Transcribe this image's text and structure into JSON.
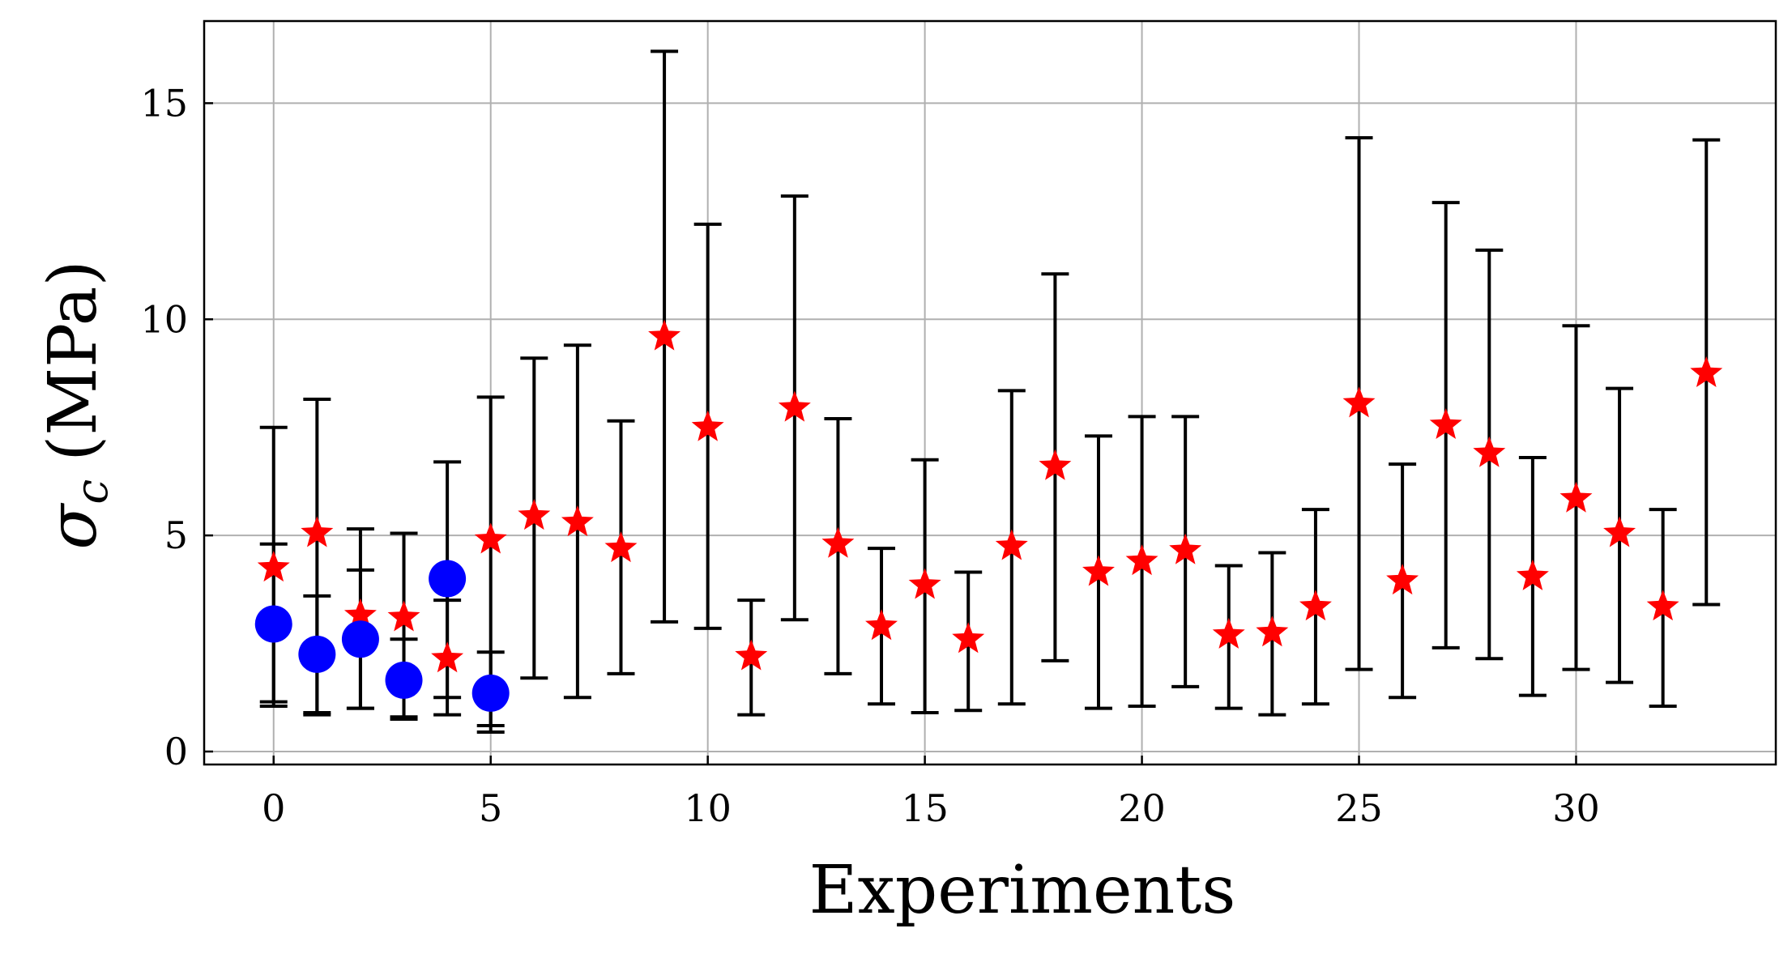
{
  "chart_data": {
    "type": "scatter",
    "xlabel": "Experiments",
    "ylabel": "σ",
    "ylabel_subscript": "c",
    "ylabel_unit": "(MPa)",
    "xlim": [
      -1.6,
      34.6
    ],
    "ylim": [
      -0.3,
      16.9
    ],
    "xticks": [
      0,
      5,
      10,
      15,
      20,
      25,
      30
    ],
    "yticks": [
      0,
      5,
      10,
      15
    ],
    "grid": true,
    "colors": {
      "stars": "#ff0000",
      "circles": "#0000ff",
      "errorbars": "#000000",
      "grid": "#b0b0b0"
    },
    "series": [
      {
        "marker": "star",
        "x": [
          0,
          1,
          2,
          3,
          4,
          5,
          6,
          7,
          8,
          9,
          10,
          11,
          12,
          13,
          14,
          15,
          16,
          17,
          18,
          19,
          20,
          21,
          22,
          23,
          24,
          25,
          26,
          27,
          28,
          29,
          30,
          31,
          32,
          33
        ],
        "y": [
          4.25,
          5.05,
          3.15,
          3.1,
          2.15,
          4.9,
          5.45,
          5.3,
          4.7,
          9.6,
          7.5,
          2.2,
          7.95,
          4.8,
          2.9,
          3.85,
          2.6,
          4.75,
          6.6,
          4.15,
          4.4,
          4.65,
          2.7,
          2.75,
          3.35,
          8.05,
          3.95,
          7.55,
          6.9,
          4.05,
          5.85,
          5.05,
          3.35,
          8.75
        ],
        "err_low": [
          1.15,
          0.9,
          1.0,
          0.75,
          0.85,
          0.45,
          1.7,
          1.25,
          1.8,
          3.0,
          2.85,
          0.85,
          3.05,
          1.8,
          1.1,
          0.9,
          0.95,
          1.1,
          2.1,
          1.0,
          1.05,
          1.5,
          1.0,
          0.85,
          1.1,
          1.9,
          1.25,
          2.4,
          2.15,
          1.3,
          1.9,
          1.6,
          1.05,
          3.4
        ],
        "err_high": [
          7.5,
          8.15,
          5.15,
          5.05,
          6.7,
          8.2,
          9.1,
          9.4,
          7.65,
          16.2,
          12.2,
          3.5,
          12.85,
          7.7,
          4.7,
          6.75,
          4.15,
          8.35,
          11.05,
          7.3,
          7.75,
          7.75,
          4.3,
          4.6,
          5.6,
          14.2,
          6.65,
          12.7,
          11.6,
          6.8,
          9.85,
          8.4,
          5.6,
          14.15
        ]
      },
      {
        "marker": "circle",
        "x": [
          0,
          1,
          2,
          3,
          4,
          5
        ],
        "y": [
          2.95,
          2.25,
          2.6,
          1.65,
          4.0,
          1.35
        ],
        "err_low": [
          1.05,
          0.85,
          1.0,
          0.8,
          1.25,
          0.6
        ],
        "err_high": [
          4.8,
          3.6,
          4.2,
          2.6,
          3.5,
          2.3
        ]
      }
    ]
  }
}
